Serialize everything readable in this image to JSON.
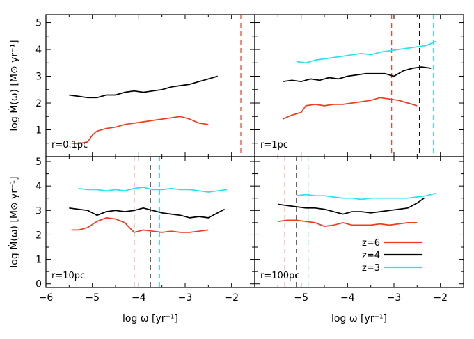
{
  "chart_data": {
    "type": "line",
    "xlabel": "log ω [yr⁻¹]",
    "ylabel": "log Ṁ(ω) [M⊙ yr⁻¹]",
    "xlim": [
      -6,
      -1.5
    ],
    "ylim": [
      0,
      5
    ],
    "xticks": [
      "−6",
      "−5",
      "−4",
      "−3",
      "−2"
    ],
    "yticks_top": [
      "1",
      "2",
      "3",
      "4",
      "5"
    ],
    "yticks_bottom": [
      "0",
      "1",
      "2",
      "3",
      "4",
      "5"
    ],
    "colors": {
      "z=6": "#f03c1e",
      "z=4": "#000000",
      "z=3": "#22e3f0"
    },
    "legend": {
      "placement": "lower-right of bottom-right panel",
      "entries": [
        "z=6",
        "z=4",
        "z=3"
      ]
    },
    "panels": [
      {
        "label": "r=0.1pc",
        "series": [
          {
            "name": "z=6",
            "x": [
              -5.45,
              -5.3,
              -5.1,
              -5.0,
              -4.9,
              -4.7,
              -4.5,
              -4.3,
              -4.1,
              -3.9,
              -3.7,
              -3.5,
              -3.3,
              -3.1,
              -2.9,
              -2.7,
              -2.5
            ],
            "y": [
              0.5,
              0.48,
              0.55,
              0.8,
              0.95,
              1.05,
              1.1,
              1.2,
              1.25,
              1.3,
              1.35,
              1.4,
              1.45,
              1.5,
              1.4,
              1.25,
              1.2
            ]
          },
          {
            "name": "z=4",
            "x": [
              -5.5,
              -5.3,
              -5.1,
              -4.9,
              -4.7,
              -4.5,
              -4.3,
              -4.1,
              -3.9,
              -3.7,
              -3.5,
              -3.3,
              -3.1,
              -2.9,
              -2.7,
              -2.5,
              -2.3
            ],
            "y": [
              2.3,
              2.25,
              2.2,
              2.2,
              2.3,
              2.3,
              2.4,
              2.45,
              2.4,
              2.45,
              2.5,
              2.6,
              2.65,
              2.7,
              2.8,
              2.9,
              3.0
            ]
          }
        ],
        "vlines": [
          {
            "name": "z=6",
            "x": -1.8
          }
        ]
      },
      {
        "label": "r=1pc",
        "series": [
          {
            "name": "z=6",
            "x": [
              -5.4,
              -5.2,
              -5.0,
              -4.9,
              -4.7,
              -4.5,
              -4.3,
              -4.1,
              -3.9,
              -3.7,
              -3.5,
              -3.3,
              -3.1,
              -2.9,
              -2.7,
              -2.5
            ],
            "y": [
              1.4,
              1.55,
              1.65,
              1.9,
              1.95,
              1.9,
              1.95,
              1.95,
              2.0,
              2.05,
              2.1,
              2.2,
              2.15,
              2.1,
              2.0,
              1.9
            ]
          },
          {
            "name": "z=4",
            "x": [
              -5.4,
              -5.2,
              -5.0,
              -4.8,
              -4.6,
              -4.4,
              -4.2,
              -4.0,
              -3.8,
              -3.6,
              -3.4,
              -3.2,
              -3.0,
              -2.8,
              -2.6,
              -2.4,
              -2.2
            ],
            "y": [
              2.8,
              2.85,
              2.8,
              2.9,
              2.85,
              2.95,
              2.9,
              3.0,
              3.05,
              3.1,
              3.1,
              3.1,
              3.0,
              3.2,
              3.3,
              3.35,
              3.3
            ]
          },
          {
            "name": "z=3",
            "x": [
              -5.1,
              -4.9,
              -4.7,
              -4.5,
              -4.3,
              -4.1,
              -3.9,
              -3.7,
              -3.5,
              -3.3,
              -3.1,
              -2.9,
              -2.7,
              -2.5,
              -2.3,
              -2.1
            ],
            "y": [
              3.55,
              3.5,
              3.6,
              3.65,
              3.7,
              3.75,
              3.8,
              3.85,
              3.8,
              3.9,
              3.95,
              4.0,
              4.05,
              4.1,
              4.15,
              4.3
            ]
          }
        ],
        "vlines": [
          {
            "name": "z=6",
            "x": -3.05
          },
          {
            "name": "z=4",
            "x": -2.45
          },
          {
            "name": "z=3",
            "x": -2.15
          }
        ]
      },
      {
        "label": "r=10pc",
        "series": [
          {
            "name": "z=6",
            "x": [
              -5.45,
              -5.3,
              -5.1,
              -4.9,
              -4.7,
              -4.5,
              -4.3,
              -4.1,
              -3.9,
              -3.7,
              -3.5,
              -3.3,
              -3.1,
              -2.9,
              -2.7,
              -2.5
            ],
            "y": [
              2.2,
              2.2,
              2.3,
              2.55,
              2.7,
              2.65,
              2.5,
              2.1,
              2.2,
              2.15,
              2.1,
              2.15,
              2.1,
              2.1,
              2.15,
              2.2
            ]
          },
          {
            "name": "z=4",
            "x": [
              -5.5,
              -5.3,
              -5.1,
              -4.9,
              -4.7,
              -4.5,
              -4.3,
              -4.1,
              -3.9,
              -3.7,
              -3.5,
              -3.3,
              -3.1,
              -2.9,
              -2.7,
              -2.5,
              -2.3,
              -2.15
            ],
            "y": [
              3.1,
              3.05,
              3.0,
              2.8,
              2.95,
              3.0,
              2.95,
              3.0,
              3.1,
              3.0,
              2.9,
              2.85,
              2.8,
              2.7,
              2.75,
              2.7,
              2.9,
              3.05
            ]
          },
          {
            "name": "z=3",
            "x": [
              -5.3,
              -5.1,
              -4.9,
              -4.7,
              -4.5,
              -4.3,
              -4.1,
              -3.9,
              -3.7,
              -3.5,
              -3.3,
              -3.1,
              -2.9,
              -2.7,
              -2.5,
              -2.3,
              -2.1
            ],
            "y": [
              3.9,
              3.85,
              3.85,
              3.8,
              3.85,
              3.8,
              3.9,
              3.95,
              3.85,
              3.85,
              3.9,
              3.85,
              3.85,
              3.8,
              3.75,
              3.8,
              3.85
            ]
          }
        ],
        "vlines": [
          {
            "name": "z=6",
            "x": -4.1
          },
          {
            "name": "z=4",
            "x": -3.75
          },
          {
            "name": "z=3",
            "x": -3.55
          }
        ]
      },
      {
        "label": "r=100pc",
        "series": [
          {
            "name": "z=6",
            "x": [
              -5.5,
              -5.3,
              -5.1,
              -4.9,
              -4.7,
              -4.5,
              -4.3,
              -4.1,
              -3.9,
              -3.7,
              -3.5,
              -3.3,
              -3.1,
              -2.9,
              -2.7,
              -2.5
            ],
            "y": [
              2.55,
              2.6,
              2.6,
              2.55,
              2.5,
              2.35,
              2.4,
              2.5,
              2.4,
              2.4,
              2.4,
              2.45,
              2.4,
              2.45,
              2.5,
              2.5
            ]
          },
          {
            "name": "z=4",
            "x": [
              -5.5,
              -5.3,
              -5.1,
              -4.9,
              -4.7,
              -4.5,
              -4.3,
              -4.1,
              -3.9,
              -3.7,
              -3.5,
              -3.3,
              -3.1,
              -2.9,
              -2.7,
              -2.5,
              -2.35
            ],
            "y": [
              3.25,
              3.2,
              3.15,
              3.1,
              3.1,
              3.05,
              2.95,
              2.85,
              2.95,
              2.95,
              2.9,
              2.95,
              3.0,
              3.05,
              3.1,
              3.3,
              3.5
            ]
          },
          {
            "name": "z=3",
            "x": [
              -5.1,
              -4.9,
              -4.7,
              -4.5,
              -4.3,
              -4.1,
              -3.9,
              -3.7,
              -3.5,
              -3.3,
              -3.1,
              -2.9,
              -2.7,
              -2.5,
              -2.3,
              -2.1
            ],
            "y": [
              3.6,
              3.65,
              3.6,
              3.6,
              3.55,
              3.5,
              3.5,
              3.45,
              3.5,
              3.5,
              3.5,
              3.5,
              3.5,
              3.55,
              3.6,
              3.7
            ]
          }
        ],
        "vlines": [
          {
            "name": "z=6",
            "x": -5.35
          },
          {
            "name": "z=4",
            "x": -5.1
          },
          {
            "name": "z=3",
            "x": -4.85
          }
        ]
      }
    ]
  }
}
